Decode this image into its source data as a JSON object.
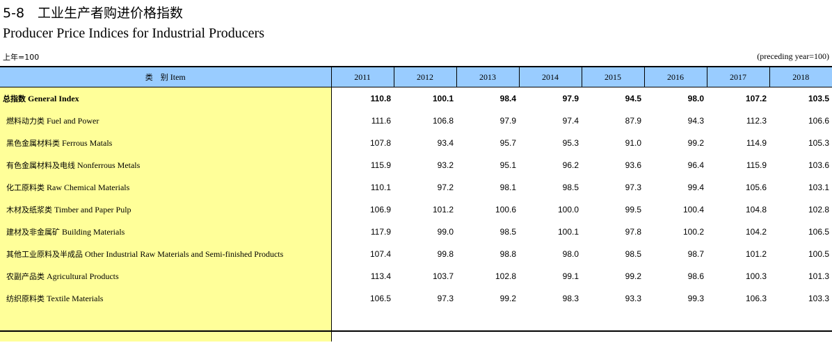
{
  "header": {
    "title_cn": "5-8　工业生产者购进价格指数",
    "title_en": "Producer Price Indices for Industrial Producers",
    "unit_cn": "上年=100",
    "unit_en": "(preceding year=100)"
  },
  "table": {
    "category_header_cn": "类　别",
    "category_header_en": "Item",
    "years": [
      "2011",
      "2012",
      "2013",
      "2014",
      "2015",
      "2016",
      "2017",
      "2018"
    ],
    "rows": [
      {
        "cn": "总指数",
        "en": "General Index",
        "values": [
          "110.8",
          "100.1",
          "98.4",
          "97.9",
          "94.5",
          "98.0",
          "107.2",
          "103.5"
        ]
      },
      {
        "cn": "燃料动力类",
        "en": "Fuel and Power",
        "values": [
          "111.6",
          "106.8",
          "97.9",
          "97.4",
          "87.9",
          "94.3",
          "112.3",
          "106.6"
        ]
      },
      {
        "cn": "黑色金属材料类",
        "en": "Ferrous Matals",
        "values": [
          "107.8",
          "93.4",
          "95.7",
          "95.3",
          "91.0",
          "99.2",
          "114.9",
          "105.3"
        ]
      },
      {
        "cn": "有色金属材料及电线",
        "en": "Nonferrous Metals",
        "values": [
          "115.9",
          "93.2",
          "95.1",
          "96.2",
          "93.6",
          "96.4",
          "115.9",
          "103.6"
        ]
      },
      {
        "cn": "化工原料类",
        "en": "Raw Chemical Materials",
        "values": [
          "110.1",
          "97.2",
          "98.1",
          "98.5",
          "97.3",
          "99.4",
          "105.6",
          "103.1"
        ]
      },
      {
        "cn": "木材及纸浆类",
        "en": "Timber and Paper Pulp",
        "values": [
          "106.9",
          "101.2",
          "100.6",
          "100.0",
          "99.5",
          "100.4",
          "104.8",
          "102.8"
        ]
      },
      {
        "cn": "建材及非金属矿",
        "en": "Building Materials",
        "values": [
          "117.9",
          "99.0",
          "98.5",
          "100.1",
          "97.8",
          "100.2",
          "104.2",
          "106.5"
        ]
      },
      {
        "cn": "其他工业原料及半成品",
        "en": "Other Industrial Raw Materials and Semi-finished Products",
        "values": [
          "107.4",
          "99.8",
          "98.8",
          "98.0",
          "98.5",
          "98.7",
          "101.2",
          "100.5"
        ]
      },
      {
        "cn": "农副产品类",
        "en": "Agricultural Products",
        "values": [
          "113.4",
          "103.7",
          "102.8",
          "99.1",
          "99.2",
          "98.6",
          "100.3",
          "101.3"
        ]
      },
      {
        "cn": "纺织原料类",
        "en": "Textile Materials",
        "values": [
          "106.5",
          "97.3",
          "99.2",
          "98.3",
          "93.3",
          "99.3",
          "106.3",
          "103.3"
        ]
      }
    ]
  }
}
